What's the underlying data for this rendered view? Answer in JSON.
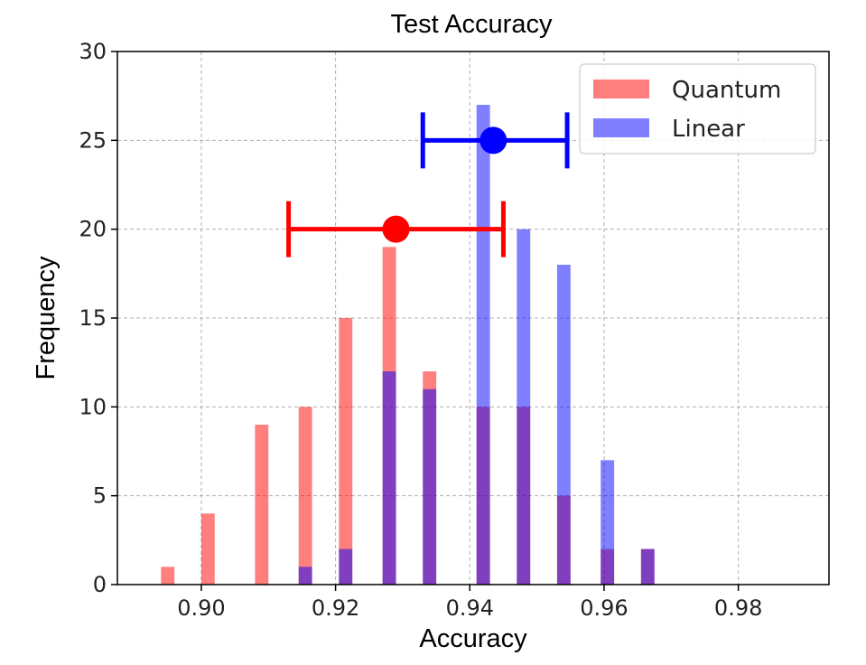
{
  "chart_data": {
    "type": "bar",
    "title": "Test Accuracy",
    "xlabel": "Accuracy",
    "ylabel": "Frequency",
    "xlim": [
      0.8875,
      0.9935
    ],
    "ylim": [
      0,
      30
    ],
    "xticks": [
      0.9,
      0.92,
      0.94,
      0.96,
      0.98
    ],
    "xtick_labels": [
      "0.90",
      "0.92",
      "0.94",
      "0.96",
      "0.98"
    ],
    "yticks": [
      0,
      5,
      10,
      15,
      20,
      25,
      30
    ],
    "ytick_labels": [
      "0",
      "5",
      "10",
      "15",
      "20",
      "25",
      "30"
    ],
    "grid": true,
    "legend_position": "top-right",
    "bar_width": 0.002,
    "series": [
      {
        "name": "Quantum",
        "color": "#ff0000",
        "opacity": 0.5,
        "x": [
          0.895,
          0.901,
          0.909,
          0.9155,
          0.9215,
          0.928,
          0.934,
          0.942,
          0.948,
          0.954,
          0.9605,
          0.9665
        ],
        "values": [
          1,
          4,
          9,
          10,
          15,
          19,
          12,
          10,
          10,
          5,
          2,
          2
        ]
      },
      {
        "name": "Linear",
        "color": "#0000ff",
        "opacity": 0.5,
        "x": [
          0.9155,
          0.9215,
          0.928,
          0.934,
          0.942,
          0.948,
          0.954,
          0.9605,
          0.9665
        ],
        "values": [
          1,
          2,
          12,
          11,
          27,
          20,
          18,
          7,
          2
        ]
      }
    ],
    "error_bars": [
      {
        "series": "Quantum",
        "color": "#ff0000",
        "mean": 0.929,
        "lower": 0.913,
        "upper": 0.945,
        "y": 20
      },
      {
        "series": "Linear",
        "color": "#0000ff",
        "mean": 0.9435,
        "lower": 0.933,
        "upper": 0.9545,
        "y": 25
      }
    ]
  }
}
